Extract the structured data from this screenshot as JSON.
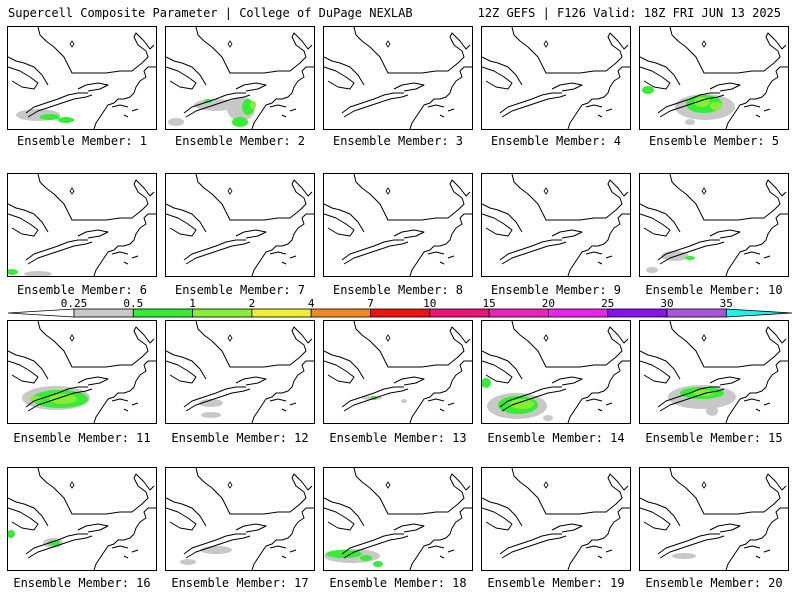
{
  "header": {
    "title_left": "Supercell Composite Parameter | College of DuPage NEXLAB",
    "title_right": "12Z GEFS | F126 Valid: 18Z FRI JUN 13 2025"
  },
  "colorbar": {
    "levels": [
      {
        "label": "0.25",
        "color": "#c8c8c8"
      },
      {
        "label": "0.5",
        "color": "#33ee33"
      },
      {
        "label": "1",
        "color": "#88ee33"
      },
      {
        "label": "2",
        "color": "#eeee33"
      },
      {
        "label": "4",
        "color": "#f08a1e"
      },
      {
        "label": "7",
        "color": "#ee1111"
      },
      {
        "label": "10",
        "color": "#ee1177"
      },
      {
        "label": "15",
        "color": "#ee22bb"
      },
      {
        "label": "20",
        "color": "#ee22ee"
      },
      {
        "label": "25",
        "color": "#8811ee"
      },
      {
        "label": "30",
        "color": "#aa55dd"
      },
      {
        "label": "35",
        "color": "#22eeee"
      }
    ]
  },
  "members": [
    {
      "label": "Ensemble Member: 1",
      "blobs": [
        {
          "x": 30,
          "y": 88,
          "rx": 22,
          "ry": 6,
          "c": 0
        },
        {
          "x": 42,
          "y": 90,
          "rx": 10,
          "ry": 3,
          "c": 1
        },
        {
          "x": 58,
          "y": 93,
          "rx": 8,
          "ry": 3,
          "c": 1
        }
      ]
    },
    {
      "label": "Ensemble Member: 2",
      "blobs": [
        {
          "x": 50,
          "y": 78,
          "rx": 22,
          "ry": 6,
          "c": 0
        },
        {
          "x": 75,
          "y": 82,
          "rx": 14,
          "ry": 12,
          "c": 0
        },
        {
          "x": 82,
          "y": 80,
          "rx": 6,
          "ry": 8,
          "c": 1
        },
        {
          "x": 87,
          "y": 78,
          "rx": 3,
          "ry": 4,
          "c": 2
        },
        {
          "x": 42,
          "y": 74,
          "rx": 4,
          "ry": 2,
          "c": 1
        },
        {
          "x": 74,
          "y": 95,
          "rx": 8,
          "ry": 5,
          "c": 1
        },
        {
          "x": 10,
          "y": 95,
          "rx": 8,
          "ry": 4,
          "c": 0
        }
      ]
    },
    {
      "label": "Ensemble Member: 3",
      "blobs": []
    },
    {
      "label": "Ensemble Member: 4",
      "blobs": []
    },
    {
      "label": "Ensemble Member: 5",
      "blobs": [
        {
          "x": 65,
          "y": 80,
          "rx": 30,
          "ry": 13,
          "c": 0
        },
        {
          "x": 64,
          "y": 77,
          "rx": 18,
          "ry": 9,
          "c": 1
        },
        {
          "x": 62,
          "y": 75,
          "rx": 8,
          "ry": 5,
          "c": 2
        },
        {
          "x": 76,
          "y": 79,
          "rx": 6,
          "ry": 4,
          "c": 2
        },
        {
          "x": 8,
          "y": 63,
          "rx": 6,
          "ry": 4,
          "c": 1
        },
        {
          "x": 50,
          "y": 95,
          "rx": 5,
          "ry": 3,
          "c": 0
        }
      ]
    },
    {
      "label": "Ensemble Member: 6",
      "blobs": [
        {
          "x": 4,
          "y": 98,
          "rx": 6,
          "ry": 3,
          "c": 1
        },
        {
          "x": 30,
          "y": 100,
          "rx": 14,
          "ry": 3,
          "c": 0
        }
      ]
    },
    {
      "label": "Ensemble Member: 7",
      "blobs": []
    },
    {
      "label": "Ensemble Member: 8",
      "blobs": []
    },
    {
      "label": "Ensemble Member: 9",
      "blobs": []
    },
    {
      "label": "Ensemble Member: 10",
      "blobs": [
        {
          "x": 35,
          "y": 82,
          "rx": 14,
          "ry": 5,
          "c": 0
        },
        {
          "x": 50,
          "y": 84,
          "rx": 5,
          "ry": 2,
          "c": 1
        },
        {
          "x": 12,
          "y": 96,
          "rx": 6,
          "ry": 3,
          "c": 0
        }
      ]
    },
    {
      "label": "Ensemble Member: 11",
      "blobs": [
        {
          "x": 48,
          "y": 77,
          "rx": 34,
          "ry": 12,
          "c": 0
        },
        {
          "x": 52,
          "y": 78,
          "rx": 28,
          "ry": 9,
          "c": 1
        },
        {
          "x": 55,
          "y": 78,
          "rx": 14,
          "ry": 5,
          "c": 2
        },
        {
          "x": 28,
          "y": 78,
          "rx": 6,
          "ry": 3,
          "c": 2
        }
      ]
    },
    {
      "label": "Ensemble Member: 12",
      "blobs": [
        {
          "x": 45,
          "y": 82,
          "rx": 12,
          "ry": 4,
          "c": 0
        },
        {
          "x": 45,
          "y": 94,
          "rx": 10,
          "ry": 3,
          "c": 0
        }
      ]
    },
    {
      "label": "Ensemble Member: 13",
      "blobs": [
        {
          "x": 48,
          "y": 77,
          "rx": 10,
          "ry": 2,
          "c": 0
        },
        {
          "x": 50,
          "y": 77,
          "rx": 3,
          "ry": 2,
          "c": 1
        },
        {
          "x": 80,
          "y": 80,
          "rx": 3,
          "ry": 2,
          "c": 0
        }
      ]
    },
    {
      "label": "Ensemble Member: 14",
      "blobs": [
        {
          "x": 35,
          "y": 85,
          "rx": 30,
          "ry": 13,
          "c": 0
        },
        {
          "x": 36,
          "y": 84,
          "rx": 20,
          "ry": 9,
          "c": 1
        },
        {
          "x": 40,
          "y": 83,
          "rx": 12,
          "ry": 5,
          "c": 2
        },
        {
          "x": 4,
          "y": 62,
          "rx": 5,
          "ry": 5,
          "c": 1
        },
        {
          "x": 66,
          "y": 97,
          "rx": 5,
          "ry": 3,
          "c": 0
        }
      ]
    },
    {
      "label": "Ensemble Member: 15",
      "blobs": [
        {
          "x": 62,
          "y": 76,
          "rx": 34,
          "ry": 12,
          "c": 0
        },
        {
          "x": 62,
          "y": 72,
          "rx": 22,
          "ry": 6,
          "c": 1
        },
        {
          "x": 64,
          "y": 72,
          "rx": 10,
          "ry": 3,
          "c": 2
        },
        {
          "x": 72,
          "y": 90,
          "rx": 6,
          "ry": 5,
          "c": 0
        }
      ]
    },
    {
      "label": "Ensemble Member: 16",
      "blobs": [
        {
          "x": 3,
          "y": 66,
          "rx": 4,
          "ry": 4,
          "c": 1
        },
        {
          "x": 45,
          "y": 75,
          "rx": 10,
          "ry": 5,
          "c": 0
        },
        {
          "x": 46,
          "y": 75,
          "rx": 6,
          "ry": 3,
          "c": 1
        }
      ]
    },
    {
      "label": "Ensemble Member: 17",
      "blobs": [
        {
          "x": 50,
          "y": 82,
          "rx": 16,
          "ry": 4,
          "c": 0
        },
        {
          "x": 22,
          "y": 94,
          "rx": 8,
          "ry": 3,
          "c": 0
        }
      ]
    },
    {
      "label": "Ensemble Member: 18",
      "blobs": [
        {
          "x": 28,
          "y": 88,
          "rx": 28,
          "ry": 7,
          "c": 0
        },
        {
          "x": 20,
          "y": 86,
          "rx": 18,
          "ry": 4,
          "c": 1
        },
        {
          "x": 42,
          "y": 90,
          "rx": 6,
          "ry": 3,
          "c": 1
        },
        {
          "x": 54,
          "y": 96,
          "rx": 5,
          "ry": 3,
          "c": 1
        }
      ]
    },
    {
      "label": "Ensemble Member: 19",
      "blobs": []
    },
    {
      "label": "Ensemble Member: 20",
      "blobs": [
        {
          "x": 44,
          "y": 88,
          "rx": 12,
          "ry": 3,
          "c": 0
        }
      ]
    }
  ]
}
